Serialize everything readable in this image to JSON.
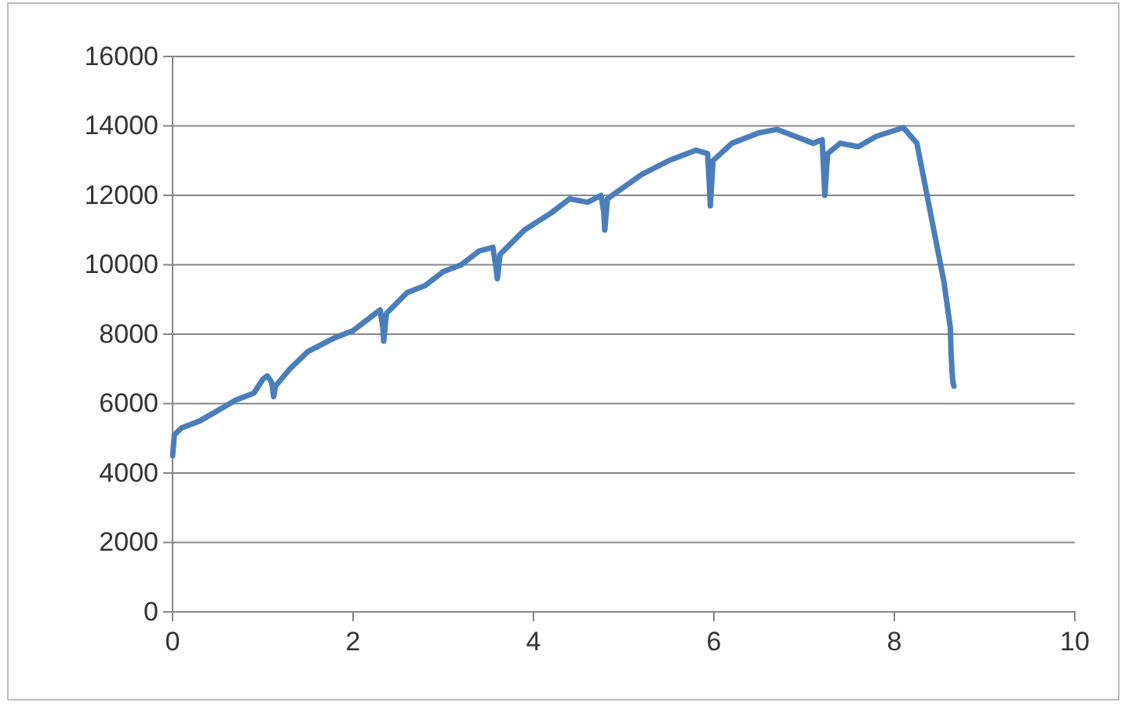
{
  "chart_data": {
    "type": "line",
    "xlim": [
      0,
      10
    ],
    "xticks": [
      0,
      2,
      4,
      6,
      8,
      10
    ],
    "ylim": [
      0,
      16000
    ],
    "yticks": [
      0,
      2000,
      4000,
      6000,
      8000,
      10000,
      12000,
      14000,
      16000
    ],
    "grid": "y",
    "marker": "none",
    "line_style": "solid",
    "series": [
      {
        "color": "#4a7ebb",
        "x": [
          0,
          0.02,
          0.1,
          0.3,
          0.5,
          0.7,
          0.9,
          1.0,
          1.05,
          1.1,
          1.12,
          1.14,
          1.3,
          1.5,
          1.8,
          2.0,
          2.2,
          2.3,
          2.33,
          2.34,
          2.37,
          2.6,
          2.8,
          3.0,
          3.2,
          3.4,
          3.55,
          3.58,
          3.6,
          3.63,
          3.9,
          4.2,
          4.4,
          4.6,
          4.75,
          4.78,
          4.79,
          4.82,
          5.2,
          5.5,
          5.8,
          5.93,
          5.95,
          5.96,
          5.99,
          6.2,
          6.5,
          6.7,
          6.9,
          7.1,
          7.2,
          7.22,
          7.23,
          7.26,
          7.4,
          7.6,
          7.8,
          8.1,
          8.25,
          8.4,
          8.55,
          8.62,
          8.63,
          8.64,
          8.65,
          8.66
        ],
        "values": [
          4500,
          5100,
          5300,
          5500,
          5800,
          6100,
          6300,
          6700,
          6800,
          6600,
          6200,
          6500,
          7000,
          7500,
          7900,
          8100,
          8500,
          8700,
          8200,
          7800,
          8600,
          9200,
          9400,
          9800,
          10000,
          10400,
          10500,
          10000,
          9600,
          10300,
          11000,
          11500,
          11900,
          11800,
          12000,
          11500,
          11000,
          11900,
          12600,
          13000,
          13300,
          13200,
          12300,
          11700,
          13000,
          13500,
          13800,
          13900,
          13700,
          13500,
          13600,
          12500,
          12000,
          13200,
          13500,
          13400,
          13700,
          13950,
          13500,
          11500,
          9500,
          8200,
          7400,
          6900,
          6600,
          6500
        ]
      }
    ]
  }
}
